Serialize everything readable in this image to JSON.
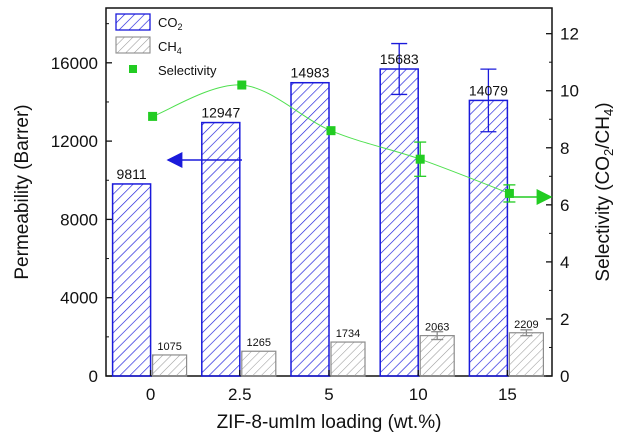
{
  "chart_data": {
    "type": "bar",
    "categories": [
      "0",
      "2.5",
      "5",
      "10",
      "15"
    ],
    "xlabel": "ZIF-8-umIm loading (wt.%)",
    "ylabel_left": "Permeability (Barrer)",
    "ylabel_right": "Selectivity (CO2/CH4)",
    "ylim_left": [
      0,
      18800
    ],
    "yticks_left": [
      0,
      4000,
      8000,
      12000,
      16000
    ],
    "ylim_right": [
      0,
      12.9
    ],
    "yticks_right": [
      0,
      2,
      4,
      6,
      8,
      10,
      12
    ],
    "series": [
      {
        "name": "CO2",
        "kind": "bar",
        "axis": "left",
        "pattern": "diagonal-hatch",
        "color": "#1a1adb",
        "values": [
          9811,
          12947,
          14983,
          15683,
          14079
        ],
        "errors": [
          0,
          0,
          0,
          1300,
          1600
        ]
      },
      {
        "name": "CH4",
        "kind": "bar",
        "axis": "left",
        "pattern": "diagonal-hatch",
        "color": "#8c8c8c",
        "values": [
          1075,
          1265,
          1734,
          2063,
          2209
        ],
        "errors": [
          0,
          0,
          0,
          200,
          150
        ]
      },
      {
        "name": "Selectivity",
        "kind": "scatter",
        "axis": "right",
        "color": "#22cc22",
        "values": [
          9.1,
          10.2,
          8.6,
          7.6,
          6.4
        ],
        "errors": [
          0,
          0,
          0,
          0.6,
          0.3
        ]
      }
    ],
    "data_labels": {
      "CO2": [
        "9811",
        "12947",
        "14983",
        "15683",
        "14079"
      ],
      "CH4": [
        "1075",
        "1265",
        "1734",
        "2063",
        "2209"
      ]
    },
    "legend": {
      "position": "top-left",
      "items": [
        {
          "label": "CO",
          "sub": "2"
        },
        {
          "label": "CH",
          "sub": "4"
        },
        {
          "label": "Selectivity",
          "sub": ""
        }
      ]
    },
    "annotations": [
      {
        "kind": "arrow",
        "direction": "left",
        "color": "#1a1adb",
        "target_axis": "left"
      },
      {
        "kind": "arrow",
        "direction": "right",
        "color": "#22cc22",
        "target_axis": "right"
      }
    ],
    "grid": false
  }
}
